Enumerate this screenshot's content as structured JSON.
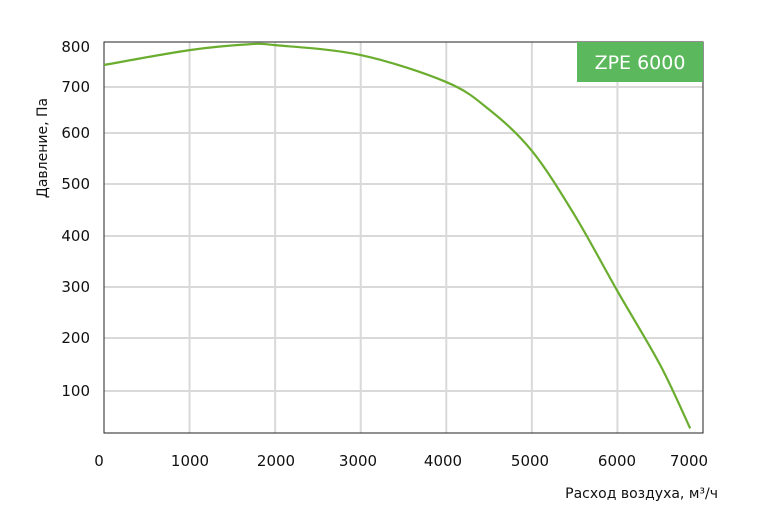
{
  "chart_data": {
    "type": "line",
    "title": "",
    "xlabel": "Расход воздуха, м³/ч",
    "ylabel": "Давление, Па",
    "xlim": [
      0,
      7000
    ],
    "ylim": [
      18,
      800
    ],
    "grid": true,
    "x_ticks": [
      "0",
      "1000",
      "2000",
      "3000",
      "4000",
      "5000",
      "6000",
      "7000"
    ],
    "y_ticks": [
      "100",
      "200",
      "300",
      "400",
      "500",
      "600",
      "700",
      "800"
    ],
    "legend": {
      "label": "ZPE 6000",
      "placement": "top-right",
      "color": "#5cb85c"
    },
    "series": [
      {
        "name": "ZPE 6000",
        "color": "#6aad2f",
        "x": [
          0,
          1000,
          1700,
          2000,
          3000,
          4000,
          4500,
          5000,
          5500,
          6000,
          6500,
          6850
        ],
        "y": [
          749,
          782,
          795,
          793,
          771,
          711,
          651,
          565,
          440,
          292,
          149,
          27
        ]
      }
    ]
  }
}
